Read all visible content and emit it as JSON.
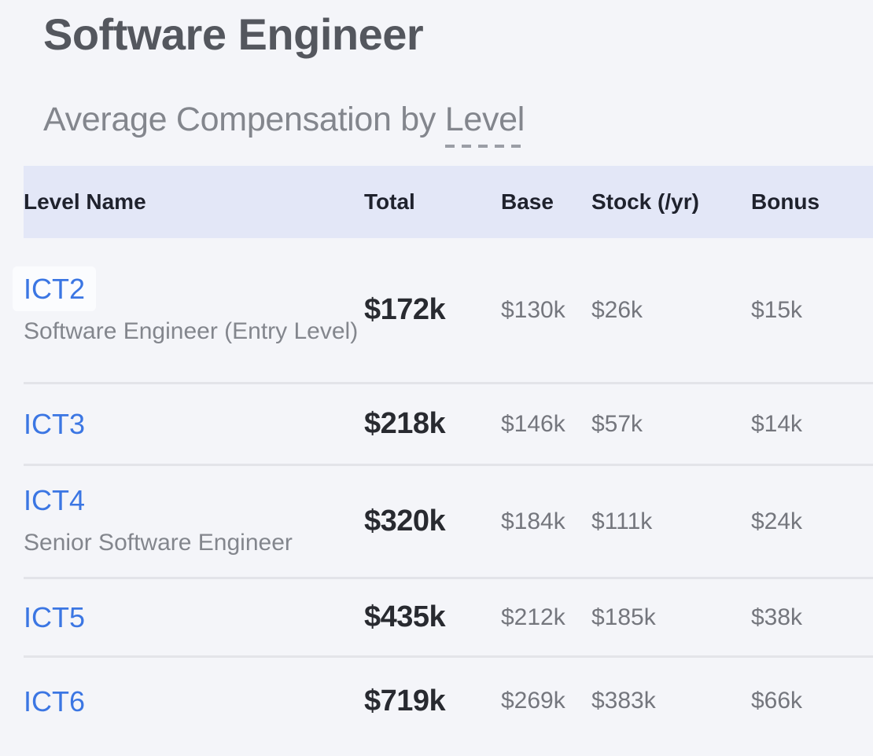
{
  "page": {
    "title": "Software Engineer",
    "subtitle_prefix": "Average Compensation by ",
    "subtitle_term": "Level"
  },
  "table": {
    "columns": [
      {
        "key": "level",
        "label": "Level Name"
      },
      {
        "key": "total",
        "label": "Total"
      },
      {
        "key": "base",
        "label": "Base"
      },
      {
        "key": "stock",
        "label": "Stock (/yr)"
      },
      {
        "key": "bonus",
        "label": "Bonus"
      }
    ],
    "rows": [
      {
        "level": "ICT2",
        "level_title": "Software Engineer (Entry Level)",
        "total": "$172k",
        "base": "$130k",
        "stock": "$26k",
        "bonus": "$15k",
        "highlighted": true
      },
      {
        "level": "ICT3",
        "level_title": "",
        "total": "$218k",
        "base": "$146k",
        "stock": "$57k",
        "bonus": "$14k",
        "highlighted": false
      },
      {
        "level": "ICT4",
        "level_title": "Senior Software Engineer",
        "total": "$320k",
        "base": "$184k",
        "stock": "$111k",
        "bonus": "$24k",
        "highlighted": false
      },
      {
        "level": "ICT5",
        "level_title": "",
        "total": "$435k",
        "base": "$212k",
        "stock": "$185k",
        "bonus": "$38k",
        "highlighted": false
      },
      {
        "level": "ICT6",
        "level_title": "",
        "total": "$719k",
        "base": "$269k",
        "stock": "$383k",
        "bonus": "$66k",
        "highlighted": false
      }
    ],
    "scroll_state": "scrolled-right-clipping-first-column"
  },
  "colors": {
    "page-bg": "#f4f5f9",
    "header-bg": "#e3e7f7",
    "header-text": "#1f222d",
    "title": "#54575e",
    "subtitle": "#83868d",
    "link": "#3b76e3",
    "total": "#282a30",
    "value": "#74767d",
    "divider": "#e3e4e9"
  }
}
